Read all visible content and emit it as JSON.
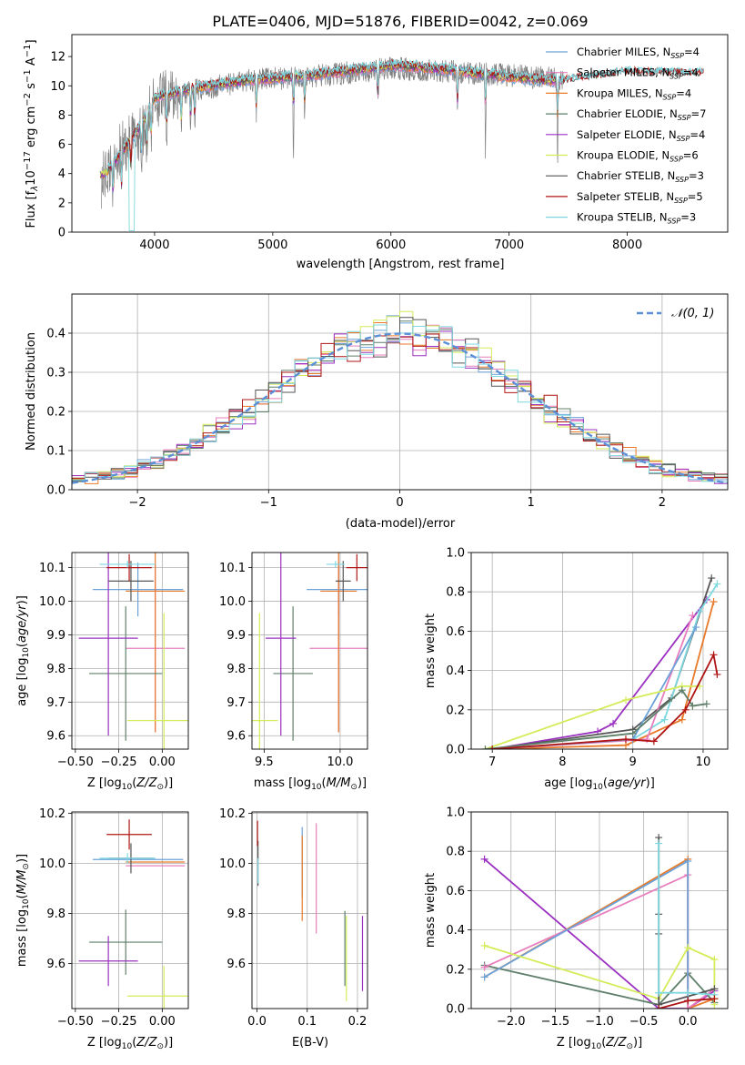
{
  "figure_title": "PLATE=0406, MJD=51876, FIBERID=0042, z=0.069",
  "series": [
    {
      "key": "chab_miles",
      "label": "Chabrier MILES, N",
      "ssp": "=4",
      "color": "#6aa2d9"
    },
    {
      "key": "salp_miles",
      "label": "Salpeter MILES, N",
      "ssp": "=4",
      "color": "#e87dbe"
    },
    {
      "key": "krou_miles",
      "label": "Kroupa MILES, N",
      "ssp": "=4",
      "color": "#e87a2a"
    },
    {
      "key": "chab_elodie",
      "label": "Chabrier ELODIE, N",
      "ssp": "=7",
      "color": "#5f7f6a"
    },
    {
      "key": "salp_elodie",
      "label": "Salpeter ELODIE, N",
      "ssp": "=4",
      "color": "#9b30c0"
    },
    {
      "key": "krou_elodie",
      "label": "Kroupa ELODIE, N",
      "ssp": "=6",
      "color": "#d4ec5a"
    },
    {
      "key": "chab_stelib",
      "label": "Chabrier STELIB, N",
      "ssp": "=3",
      "color": "#555555"
    },
    {
      "key": "salp_stelib",
      "label": "Salpeter STELIB, N",
      "ssp": "=5",
      "color": "#b01515"
    },
    {
      "key": "krou_stelib",
      "label": "Kroupa STELIB, N",
      "ssp": "=3",
      "color": "#7dd8e0"
    }
  ],
  "data_color": "#808080",
  "gauss_color": "#5b8fd6",
  "chart_data": [
    {
      "id": "spectrum",
      "type": "line",
      "xlabel": "wavelength [Angstrom, rest frame]",
      "ylabel": "Flux [f",
      "xlim": [
        3300,
        8850
      ],
      "ylim": [
        0,
        13.5
      ],
      "xticks": [
        4000,
        5000,
        6000,
        7000,
        8000
      ],
      "yticks": [
        0,
        2,
        4,
        6,
        8,
        10,
        12
      ],
      "continuum_anchors": [
        [
          3550,
          3.5
        ],
        [
          3700,
          5.5
        ],
        [
          3900,
          7.0
        ],
        [
          4000,
          9.0
        ],
        [
          4300,
          9.6
        ],
        [
          4800,
          10.4
        ],
        [
          5300,
          10.6
        ],
        [
          6000,
          11.2
        ],
        [
          6500,
          11.0
        ],
        [
          7000,
          10.7
        ],
        [
          7450,
          10.5
        ],
        [
          8000,
          11.0
        ],
        [
          8500,
          10.6
        ]
      ],
      "model_anchors": [
        [
          3580,
          4.0
        ],
        [
          3700,
          5.2
        ],
        [
          3900,
          7.5
        ],
        [
          4000,
          9.2
        ],
        [
          4300,
          9.8
        ],
        [
          4800,
          10.4
        ],
        [
          5300,
          10.7
        ],
        [
          6000,
          11.4
        ],
        [
          6500,
          11.1
        ],
        [
          7000,
          10.6
        ],
        [
          7450,
          10.3
        ],
        [
          8000,
          10.9
        ],
        [
          8500,
          10.8
        ]
      ],
      "absorption_lines": [
        3650,
        3720,
        3800,
        3890,
        3935,
        3970,
        4102,
        4226,
        4305,
        4340,
        4861,
        5175,
        5270,
        5890,
        6563,
        6800,
        7410
      ]
    },
    {
      "id": "residuals",
      "type": "histogram",
      "xlabel": "(data-model)/error",
      "ylabel": "Normed distribution",
      "xlim": [
        -2.5,
        2.5
      ],
      "ylim": [
        0,
        0.5
      ],
      "xticks": [
        -2,
        -1,
        0,
        1,
        2
      ],
      "yticks": [
        0,
        0.1,
        0.2,
        0.3,
        0.4
      ],
      "bin_width": 0.1,
      "gauss_label": "𝒩(0, 1)"
    },
    {
      "id": "z_age",
      "type": "errorbar",
      "xlabel": "Z [log",
      "ylabel": "age  [log",
      "xlim": [
        -0.52,
        0.15
      ],
      "ylim": [
        9.56,
        10.145
      ],
      "xticks": [
        -0.5,
        -0.25,
        0
      ],
      "yticks": [
        9.6,
        9.7,
        9.8,
        9.9,
        10.0,
        10.1
      ],
      "points": [
        {
          "s": "chab_miles",
          "x": -0.14,
          "xe": 0.26,
          "y": 10.035,
          "ye": 0.08
        },
        {
          "s": "salp_miles",
          "x": -0.04,
          "xe": 0.17,
          "y": 9.86,
          "ye": 0.25
        },
        {
          "s": "krou_miles",
          "x": -0.04,
          "xe": 0.17,
          "y": 10.03,
          "ye": 0.42
        },
        {
          "s": "chab_elodie",
          "x": -0.21,
          "xe": 0.21,
          "y": 9.785,
          "ye": 0.2
        },
        {
          "s": "salp_elodie",
          "x": -0.31,
          "xe": 0.17,
          "y": 9.89,
          "ye": 0.29
        },
        {
          "s": "krou_elodie",
          "x": 0.01,
          "xe": 0.21,
          "y": 9.645,
          "ye": 0.32
        },
        {
          "s": "chab_stelib",
          "x": -0.18,
          "xe": 0.13,
          "y": 10.06,
          "ye": 0.06
        },
        {
          "s": "salp_stelib",
          "x": -0.19,
          "xe": 0.13,
          "y": 10.1,
          "ye": 0.04
        },
        {
          "s": "krou_stelib",
          "x": -0.2,
          "xe": 0.16,
          "y": 10.11,
          "ye": 0.01
        }
      ]
    },
    {
      "id": "mass_age",
      "type": "errorbar",
      "xlabel": "mass [log",
      "ylabel": "",
      "xlim": [
        9.42,
        10.18
      ],
      "ylim": [
        9.56,
        10.145
      ],
      "xticks": [
        9.5,
        10.0
      ],
      "yticks": [
        9.6,
        9.7,
        9.8,
        9.9,
        10.0,
        10.1
      ],
      "points": [
        {
          "s": "chab_miles",
          "x": 9.99,
          "xe": 0.21,
          "y": 10.035,
          "ye": 0.08
        },
        {
          "s": "salp_miles",
          "x": 9.99,
          "xe": 0.19,
          "y": 9.86,
          "ye": 0.25
        },
        {
          "s": "krou_miles",
          "x": 9.99,
          "xe": 0.12,
          "y": 10.03,
          "ye": 0.42
        },
        {
          "s": "chab_elodie",
          "x": 9.69,
          "xe": 0.13,
          "y": 9.785,
          "ye": 0.2
        },
        {
          "s": "salp_elodie",
          "x": 9.61,
          "xe": 0.1,
          "y": 9.89,
          "ye": 0.29
        },
        {
          "s": "krou_elodie",
          "x": 9.47,
          "xe": 0.12,
          "y": 9.645,
          "ye": 0.32
        },
        {
          "s": "chab_stelib",
          "x": 10.02,
          "xe": 0.05,
          "y": 10.06,
          "ye": 0.06
        },
        {
          "s": "salp_stelib",
          "x": 10.11,
          "xe": 0.07,
          "y": 10.1,
          "ye": 0.04
        },
        {
          "s": "krou_stelib",
          "x": 9.97,
          "xe": 0.06,
          "y": 10.11,
          "ye": 0.01
        }
      ]
    },
    {
      "id": "age_weight",
      "type": "line",
      "xlabel": "age  [log",
      "ylabel": "mass weight",
      "xlim": [
        6.7,
        10.35
      ],
      "ylim": [
        0,
        1.0
      ],
      "xticks": [
        7,
        8,
        9,
        10
      ],
      "yticks": [
        0,
        0.2,
        0.4,
        0.6,
        0.8,
        1.0
      ],
      "lines": [
        {
          "s": "salp_elodie",
          "pts": [
            [
              7.0,
              0.0
            ],
            [
              8.5,
              0.09
            ],
            [
              8.72,
              0.13
            ],
            [
              10.05,
              0.76
            ]
          ]
        },
        {
          "s": "chab_stelib",
          "pts": [
            [
              7.0,
              0.0
            ],
            [
              9.0,
              0.1
            ],
            [
              9.55,
              0.26
            ],
            [
              10.12,
              0.87
            ]
          ]
        },
        {
          "s": "krou_stelib",
          "pts": [
            [
              7.0,
              0.0
            ],
            [
              9.0,
              0.05
            ],
            [
              9.45,
              0.15
            ],
            [
              9.95,
              0.7
            ],
            [
              10.2,
              0.84
            ]
          ]
        },
        {
          "s": "krou_miles",
          "pts": [
            [
              7.0,
              0.0
            ],
            [
              8.9,
              0.02
            ],
            [
              9.7,
              0.15
            ],
            [
              10.15,
              0.75
            ]
          ]
        },
        {
          "s": "salp_miles",
          "pts": [
            [
              7.0,
              0.0
            ],
            [
              9.2,
              0.05
            ],
            [
              9.85,
              0.68
            ]
          ]
        },
        {
          "s": "chab_miles",
          "pts": [
            [
              7.0,
              0.0
            ],
            [
              9.0,
              0.05
            ],
            [
              9.9,
              0.62
            ]
          ]
        },
        {
          "s": "krou_elodie",
          "pts": [
            [
              6.9,
              0.0
            ],
            [
              8.9,
              0.25
            ],
            [
              9.7,
              0.32
            ],
            [
              9.95,
              0.32
            ]
          ]
        },
        {
          "s": "chab_elodie",
          "pts": [
            [
              6.9,
              0.0
            ],
            [
              9.0,
              0.08
            ],
            [
              9.7,
              0.3
            ],
            [
              9.85,
              0.22
            ],
            [
              10.05,
              0.23
            ]
          ]
        },
        {
          "s": "salp_stelib",
          "pts": [
            [
              7.0,
              0.0
            ],
            [
              8.9,
              0.05
            ],
            [
              9.3,
              0.04
            ],
            [
              9.75,
              0.2
            ],
            [
              10.15,
              0.48
            ],
            [
              10.2,
              0.38
            ]
          ]
        }
      ]
    },
    {
      "id": "z_mass",
      "type": "errorbar",
      "xlabel": "Z [log",
      "ylabel": "mass [log",
      "xlim": [
        -0.52,
        0.15
      ],
      "ylim": [
        9.42,
        10.205
      ],
      "xticks": [
        -0.5,
        -0.25,
        0
      ],
      "yticks": [
        9.6,
        9.8,
        10.0,
        10.2
      ],
      "points": [
        {
          "s": "chab_miles",
          "x": -0.14,
          "xe": 0.26,
          "y": 10.015,
          "ye": 0.0
        },
        {
          "s": "salp_miles",
          "x": -0.04,
          "xe": 0.17,
          "y": 9.99,
          "ye": 0.0
        },
        {
          "s": "krou_miles",
          "x": -0.04,
          "xe": 0.17,
          "y": 10.005,
          "ye": 0.0
        },
        {
          "s": "chab_elodie",
          "x": -0.21,
          "xe": 0.21,
          "y": 9.685,
          "ye": 0.13
        },
        {
          "s": "salp_elodie",
          "x": -0.31,
          "xe": 0.17,
          "y": 9.61,
          "ye": 0.1
        },
        {
          "s": "krou_elodie",
          "x": 0.01,
          "xe": 0.21,
          "y": 9.47,
          "ye": 0.12
        },
        {
          "s": "chab_stelib",
          "x": -0.18,
          "xe": 0.13,
          "y": 10.02,
          "ye": 0.06
        },
        {
          "s": "salp_stelib",
          "x": -0.19,
          "xe": 0.13,
          "y": 10.115,
          "ye": 0.06
        },
        {
          "s": "krou_stelib",
          "x": -0.2,
          "xe": 0.16,
          "y": 10.02,
          "ye": 0.02
        }
      ]
    },
    {
      "id": "ebv_mass",
      "type": "errorbar",
      "xlabel": "E(B-V)",
      "ylabel": "",
      "xlim": [
        -0.01,
        0.22
      ],
      "ylim": [
        9.42,
        10.205
      ],
      "xticks": [
        0.0,
        0.1,
        0.2
      ],
      "yticks": [
        9.6,
        9.8,
        10.0,
        10.2
      ],
      "points": [
        {
          "s": "chab_miles",
          "x": 0.09,
          "xe": 0,
          "y": 10.005,
          "ye": 0.14
        },
        {
          "s": "salp_miles",
          "x": 0.118,
          "xe": 0,
          "y": 9.94,
          "ye": 0.22
        },
        {
          "s": "krou_miles",
          "x": 0.09,
          "xe": 0,
          "y": 9.94,
          "ye": 0.17
        },
        {
          "s": "chab_elodie",
          "x": 0.175,
          "xe": 0,
          "y": 9.66,
          "ye": 0.15
        },
        {
          "s": "salp_elodie",
          "x": 0.21,
          "xe": 0,
          "y": 9.64,
          "ye": 0.15
        },
        {
          "s": "krou_elodie",
          "x": 0.178,
          "xe": 0,
          "y": 9.62,
          "ye": 0.17
        },
        {
          "s": "chab_stelib",
          "x": 0.002,
          "xe": 0,
          "y": 10.0,
          "ye": 0.09
        },
        {
          "s": "salp_stelib",
          "x": 0.001,
          "xe": 0,
          "y": 10.12,
          "ye": 0.05
        },
        {
          "s": "krou_stelib",
          "x": 0.002,
          "xe": 0,
          "y": 9.97,
          "ye": 0.05
        }
      ]
    },
    {
      "id": "z_weight",
      "type": "line",
      "xlabel": "Z [log",
      "ylabel": "mass weight",
      "xlim": [
        -2.45,
        0.45
      ],
      "ylim": [
        0,
        1.0
      ],
      "xticks": [
        -2.0,
        -1.5,
        -1.0,
        -0.5,
        0.0
      ],
      "yticks": [
        0,
        0.2,
        0.4,
        0.6,
        0.8,
        1.0
      ],
      "lines": [
        {
          "s": "salp_elodie",
          "pts": [
            [
              -2.3,
              0.76
            ],
            [
              -0.33,
              0.0
            ],
            [
              0.0,
              0.0
            ],
            [
              0.3,
              0.09
            ]
          ]
        },
        {
          "s": "chab_elodie",
          "pts": [
            [
              -2.3,
              0.22
            ],
            [
              -0.33,
              0.02
            ],
            [
              0.0,
              0.18
            ],
            [
              0.3,
              0.03
            ]
          ]
        },
        {
          "s": "krou_miles",
          "pts": [
            [
              -2.3,
              0.16
            ],
            [
              0.0,
              0.76
            ],
            [
              0.0,
              0.0
            ],
            [
              0.3,
              0.05
            ]
          ]
        },
        {
          "s": "salp_miles",
          "pts": [
            [
              -2.3,
              0.21
            ],
            [
              0.0,
              0.68
            ],
            [
              0.0,
              0.0
            ],
            [
              0.3,
              0.1
            ]
          ]
        },
        {
          "s": "chab_miles",
          "pts": [
            [
              -2.3,
              0.16
            ],
            [
              0.0,
              0.75
            ],
            [
              0.0,
              0.04
            ]
          ]
        },
        {
          "s": "krou_elodie",
          "pts": [
            [
              -2.3,
              0.32
            ],
            [
              -0.33,
              0.05
            ],
            [
              0.0,
              0.31
            ],
            [
              0.3,
              0.25
            ],
            [
              0.3,
              0.02
            ]
          ]
        },
        {
          "s": "chab_stelib",
          "pts": [
            [
              -0.33,
              0.87
            ],
            [
              -0.33,
              0.48
            ],
            [
              -0.33,
              0.38
            ],
            [
              -0.33,
              0.02
            ],
            [
              0.3,
              0.1
            ]
          ]
        },
        {
          "s": "krou_stelib",
          "pts": [
            [
              -0.33,
              0.84
            ],
            [
              -0.33,
              0.08
            ],
            [
              0.0,
              0.08
            ],
            [
              0.3,
              0.07
            ]
          ]
        },
        {
          "s": "salp_stelib",
          "pts": [
            [
              -0.33,
              0.0
            ],
            [
              0.0,
              0.04
            ],
            [
              0.3,
              0.05
            ]
          ]
        }
      ]
    }
  ]
}
